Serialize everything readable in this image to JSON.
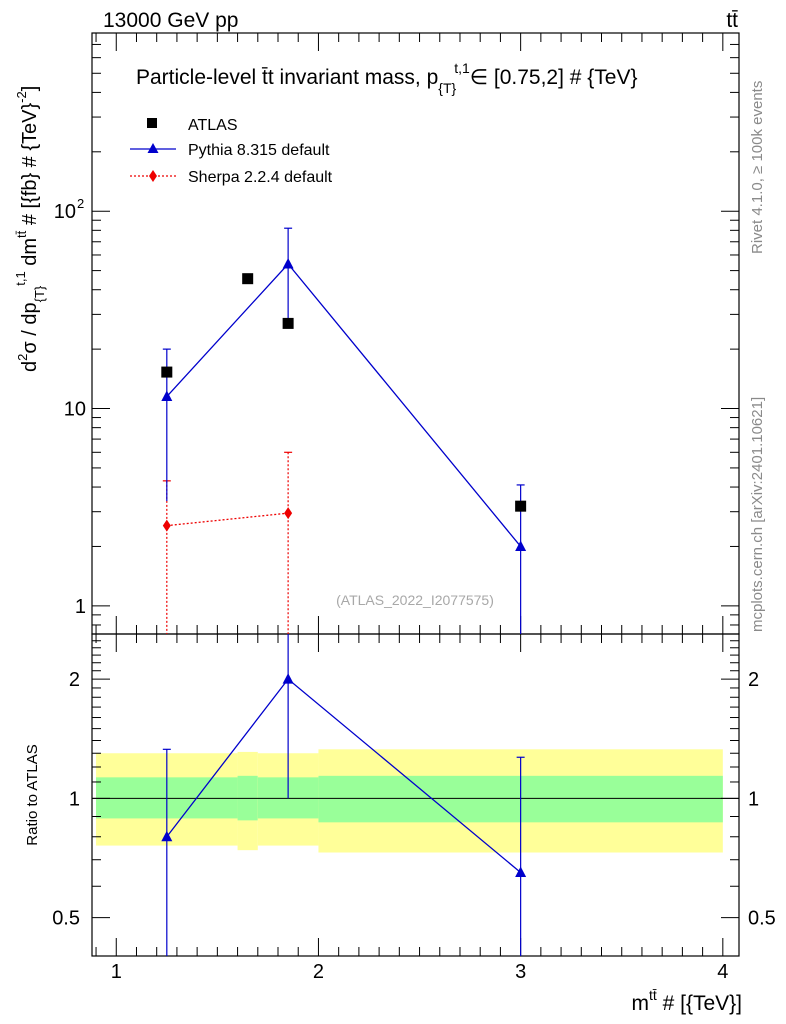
{
  "header": {
    "left": "13000 GeV pp",
    "right": "tt̄"
  },
  "side_labels": {
    "rivet": "Rivet 4.1.0, ≥ 100k events",
    "mcplots": "mcplots.cern.ch [arXiv:2401.10621]"
  },
  "colors": {
    "atlas": "#000000",
    "pythia": "#0000cc",
    "sherpa": "#ee0000",
    "band_outer": "#ffff99",
    "band_inner": "#99ff99"
  },
  "chart_data": [
    {
      "type": "scatter",
      "title": "Particle-level t̄t invariant mass, p",
      "title_sub": "{T}",
      "title_sup": "t,1",
      "title_rest": "∈ [0.75,2] # {TeV}",
      "ylabel": "d²σ / dp{T}t,1 dmtt̄ # [{fb} # {TeV}⁻²]",
      "ylabel_parts": {
        "d": "d",
        "sup2": "2",
        "sigma_dp": "σ / dp",
        "sub_T": "{T}",
        "sup_t1": "t,1",
        "dm": " dm",
        "sup_tt": "tt̄",
        "units": " # [{fb} # {TeV}",
        "sup_m2": "-2",
        "close": "]"
      },
      "yscale": "log",
      "ylim": [
        0.72,
        800
      ],
      "xlim": [
        0.88,
        4.08
      ],
      "yticks": [
        {
          "v": 1,
          "label": "1"
        },
        {
          "v": 10,
          "label": "10"
        },
        {
          "v": 100,
          "label": "10",
          "sup": "2"
        }
      ],
      "watermark": "(ATLAS_2022_I2077575)",
      "legend": [
        {
          "key": "atlas",
          "label": "ATLAS"
        },
        {
          "key": "pythia",
          "label": "Pythia 8.315 default"
        },
        {
          "key": "sherpa",
          "label": "Sherpa 2.2.4 default"
        }
      ],
      "series": [
        {
          "name": "ATLAS",
          "key": "atlas",
          "style": "square",
          "x": [
            1.25,
            1.65,
            1.85,
            3.0
          ],
          "y": [
            15.3,
            45.5,
            27.0,
            3.2
          ],
          "ylow": [
            15.3,
            45.5,
            27.0,
            3.2
          ],
          "yhigh": [
            15.3,
            45.5,
            27.0,
            3.2
          ]
        },
        {
          "name": "Pythia 8.315 default",
          "key": "pythia",
          "style": "triangle",
          "x": [
            1.25,
            1.85,
            3.0
          ],
          "y": [
            11.5,
            54.0,
            2.0
          ],
          "ylow": [
            3.4,
            27.0,
            0.0
          ],
          "yhigh": [
            20.0,
            82.0,
            4.1
          ]
        },
        {
          "name": "Sherpa 2.2.4 default",
          "key": "sherpa",
          "style": "diamond",
          "x": [
            1.25,
            1.85
          ],
          "y": [
            2.55,
            2.95
          ],
          "ylow": [
            0.0,
            0.0
          ],
          "yhigh": [
            4.3,
            6.0
          ]
        }
      ]
    },
    {
      "type": "scatter",
      "ylabel": "Ratio to ATLAS",
      "xlabel": "m",
      "xlabel_sup": "tt̄",
      "xlabel_rest": " # [{TeV}]",
      "yscale": "log",
      "ylim": [
        0.4,
        2.6
      ],
      "xlim": [
        0.88,
        4.08
      ],
      "xticks": [
        {
          "v": 1,
          "label": "1"
        },
        {
          "v": 2,
          "label": "2"
        },
        {
          "v": 3,
          "label": "3"
        },
        {
          "v": 4,
          "label": "4"
        }
      ],
      "yticks": [
        {
          "v": 0.5,
          "label": "0.5"
        },
        {
          "v": 1,
          "label": "1"
        },
        {
          "v": 2,
          "label": "2"
        }
      ],
      "bands": [
        {
          "x0": 0.9,
          "x1": 1.6,
          "outer": [
            0.76,
            1.3
          ],
          "inner": [
            0.89,
            1.13
          ]
        },
        {
          "x0": 1.6,
          "x1": 1.7,
          "outer": [
            0.74,
            1.31
          ],
          "inner": [
            0.88,
            1.14
          ]
        },
        {
          "x0": 1.7,
          "x1": 2.0,
          "outer": [
            0.76,
            1.3
          ],
          "inner": [
            0.89,
            1.13
          ]
        },
        {
          "x0": 2.0,
          "x1": 4.0,
          "outer": [
            0.73,
            1.33
          ],
          "inner": [
            0.87,
            1.14
          ]
        }
      ],
      "series": [
        {
          "name": "Pythia 8.315 default",
          "key": "pythia",
          "style": "triangle",
          "x": [
            1.25,
            1.85,
            3.0
          ],
          "y": [
            0.8,
            2.0,
            0.65
          ],
          "ylow": [
            0.0,
            1.0,
            0.0
          ],
          "yhigh": [
            1.33,
            2.8,
            1.27
          ]
        }
      ]
    }
  ]
}
